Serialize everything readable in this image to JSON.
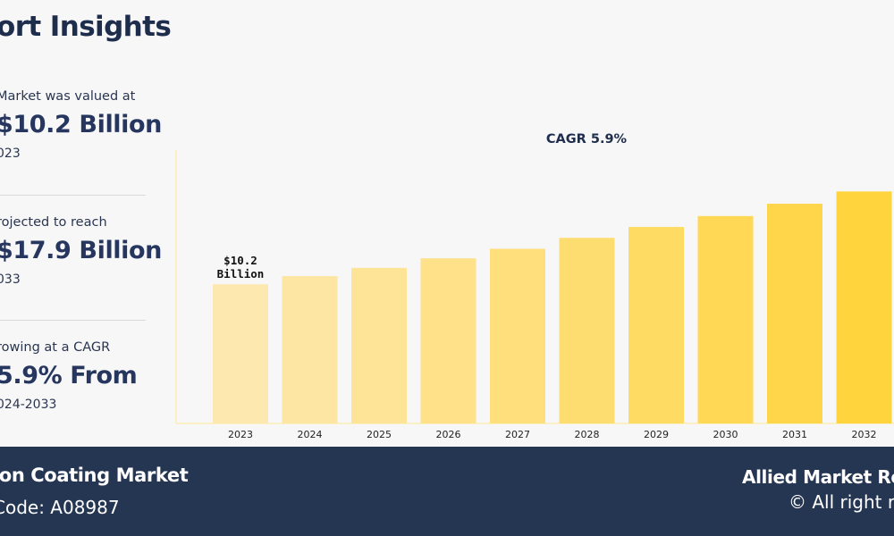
{
  "header": {
    "title": "ort Insights"
  },
  "stats": [
    {
      "intro": "Market was valued at",
      "value": "$10.2 Billion",
      "year": "023"
    },
    {
      "intro": "rojected to reach",
      "value": "$17.9 Billion",
      "year": "033"
    },
    {
      "intro": "rowing at a CAGR",
      "value": "5.9% From",
      "year": "024-2033"
    }
  ],
  "footer": {
    "title": "ion Coating Market",
    "code": "Code: A08987",
    "brand": "Allied Market Re",
    "rights": "© All right r"
  },
  "colors": {
    "background": "#f7f7f8",
    "navy": "#253653",
    "bar_start": "#fde8b0",
    "bar_end": "#ffd43c",
    "axis": "#fbefc6"
  },
  "chart_data": {
    "type": "bar",
    "title": "CAGR 5.9%",
    "categories": [
      "2023",
      "2024",
      "2025",
      "2026",
      "2027",
      "2028",
      "2029",
      "2030",
      "2031",
      "2032"
    ],
    "values": [
      10.2,
      10.8,
      11.4,
      12.1,
      12.8,
      13.6,
      14.4,
      15.2,
      16.1,
      17.0
    ],
    "data_labels": [
      {
        "index": 0,
        "lines": [
          "$10.2",
          "Billion"
        ]
      }
    ],
    "ylim": [
      0,
      18.2
    ],
    "grid": false,
    "legend": false,
    "xlabel": "",
    "ylabel": ""
  }
}
